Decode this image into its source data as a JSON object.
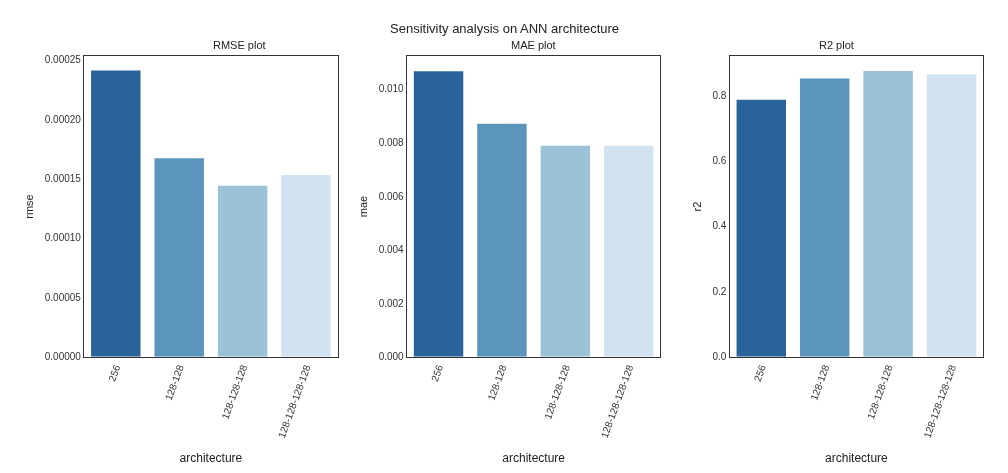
{
  "chart_data": [
    {
      "type": "bar",
      "title": "RMSE plot",
      "annotations": [
        "Sensitivity analysis on ANN architecture"
      ],
      "xlabel": "architecture",
      "ylabel": "rmse",
      "categories": [
        "256",
        "128-128",
        "128-128-128",
        "128-128-128-128"
      ],
      "values": [
        0.000241,
        0.000167,
        0.000144,
        0.000153
      ],
      "colors": [
        "#2a6399",
        "#5b95bc",
        "#9cc2d8",
        "#d2e2f0"
      ],
      "ylim": [
        0,
        0.000253
      ],
      "yticks": [
        {
          "value": 0,
          "label": "0.00000"
        },
        {
          "value": 5e-05,
          "label": "0.00005"
        },
        {
          "value": 0.0001,
          "label": "0.00010"
        },
        {
          "value": 0.00015,
          "label": "0.00015"
        },
        {
          "value": 0.0002,
          "label": "0.00020"
        },
        {
          "value": 0.00025,
          "label": "0.00025"
        }
      ]
    },
    {
      "type": "bar",
      "title": "MAE plot",
      "xlabel": "architecture",
      "ylabel": "mae",
      "categories": [
        "256",
        "128-128",
        "128-128-128",
        "128-128-128-128"
      ],
      "values": [
        0.01066,
        0.0087,
        0.00788,
        0.00788
      ],
      "colors": [
        "#2a6399",
        "#5b95bc",
        "#9cc2d8",
        "#d2e2f0"
      ],
      "ylim": [
        0,
        0.01122
      ],
      "yticks": [
        {
          "value": 0,
          "label": "0.000"
        },
        {
          "value": 0.002,
          "label": "0.002"
        },
        {
          "value": 0.004,
          "label": "0.004"
        },
        {
          "value": 0.006,
          "label": "0.006"
        },
        {
          "value": 0.008,
          "label": "0.008"
        },
        {
          "value": 0.01,
          "label": "0.010"
        }
      ]
    },
    {
      "type": "bar",
      "title": "R2 plot",
      "xlabel": "architecture",
      "ylabel": "r2",
      "categories": [
        "256",
        "128-128",
        "128-128-128",
        "128-128-128-128"
      ],
      "values": [
        0.786,
        0.851,
        0.874,
        0.863
      ],
      "colors": [
        "#2a6399",
        "#5b95bc",
        "#9cc2d8",
        "#d2e2f0"
      ],
      "ylim": [
        0,
        0.919
      ],
      "yticks": [
        {
          "value": 0,
          "label": "0.0"
        },
        {
          "value": 0.2,
          "label": "0.2"
        },
        {
          "value": 0.4,
          "label": "0.4"
        },
        {
          "value": 0.6,
          "label": "0.6"
        },
        {
          "value": 0.8,
          "label": "0.8"
        }
      ]
    }
  ]
}
